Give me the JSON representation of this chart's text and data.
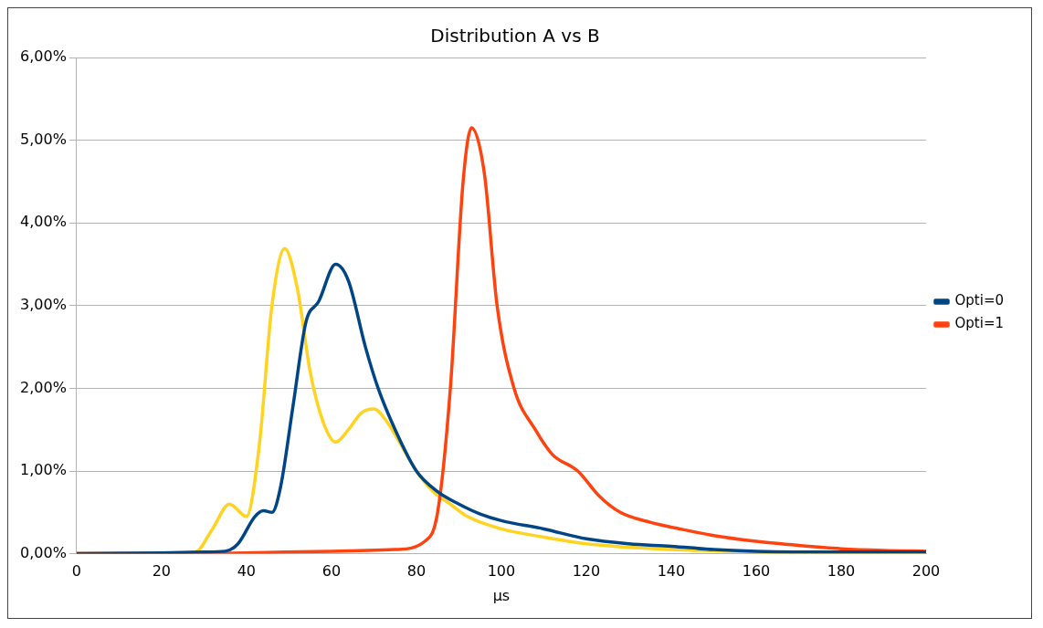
{
  "chart_data": {
    "type": "line",
    "title": "Distribution A vs B",
    "xlabel": "µs",
    "xlim": [
      0,
      200
    ],
    "xticks": [
      0,
      20,
      40,
      60,
      80,
      100,
      120,
      140,
      160,
      180,
      200
    ],
    "ylim": [
      0,
      6
    ],
    "yticks": [
      {
        "value": 0,
        "label": "0,00%"
      },
      {
        "value": 1,
        "label": "1,00%"
      },
      {
        "value": 2,
        "label": "2,00%"
      },
      {
        "value": 3,
        "label": "3,00%"
      },
      {
        "value": 4,
        "label": "4,00%"
      },
      {
        "value": 5,
        "label": "5,00%"
      },
      {
        "value": 6,
        "label": "6,00%"
      }
    ],
    "grid": "y",
    "legend": "right",
    "marker": "none",
    "line_style": "solid",
    "series": [
      {
        "name": "Opti=0",
        "color": "#004586",
        "x": [
          0,
          20,
          30,
          35,
          38,
          42,
          44,
          46,
          48,
          51,
          54,
          57,
          61,
          64,
          68,
          71,
          75,
          80,
          85,
          90,
          95,
          100,
          110,
          120,
          130,
          140,
          150,
          160,
          180,
          200
        ],
        "values": [
          0,
          0.01,
          0.02,
          0.03,
          0.12,
          0.45,
          0.52,
          0.5,
          0.8,
          1.8,
          2.8,
          3.05,
          3.5,
          3.3,
          2.5,
          2.0,
          1.5,
          1.0,
          0.75,
          0.6,
          0.48,
          0.4,
          0.3,
          0.18,
          0.12,
          0.09,
          0.05,
          0.03,
          0.02,
          0.02
        ]
      },
      {
        "name": "Opti=1",
        "color": "#ff420e",
        "x": [
          0,
          20,
          40,
          60,
          75,
          82,
          85,
          88,
          91,
          93,
          96,
          99,
          103,
          108,
          112,
          118,
          123,
          128,
          135,
          142,
          150,
          160,
          170,
          180,
          190,
          200
        ],
        "values": [
          0,
          0,
          0.01,
          0.03,
          0.05,
          0.15,
          0.5,
          2.0,
          4.5,
          5.15,
          4.6,
          3.0,
          2.0,
          1.5,
          1.2,
          1.0,
          0.7,
          0.5,
          0.38,
          0.3,
          0.22,
          0.15,
          0.1,
          0.06,
          0.04,
          0.03
        ]
      },
      {
        "color": "#ffd320",
        "x": [
          0,
          20,
          28,
          32,
          36,
          40,
          43,
          46,
          49,
          52,
          55,
          58,
          61,
          64,
          67,
          70,
          73,
          76,
          80,
          84,
          88,
          92,
          100,
          110,
          120,
          140,
          160,
          170,
          200
        ],
        "values": [
          0,
          0,
          0.02,
          0.3,
          0.6,
          0.45,
          1.3,
          3.0,
          3.69,
          3.2,
          2.2,
          1.6,
          1.35,
          1.5,
          1.7,
          1.75,
          1.6,
          1.35,
          1.0,
          0.75,
          0.6,
          0.45,
          0.3,
          0.2,
          0.12,
          0.05,
          0.02,
          0,
          0
        ]
      }
    ]
  }
}
